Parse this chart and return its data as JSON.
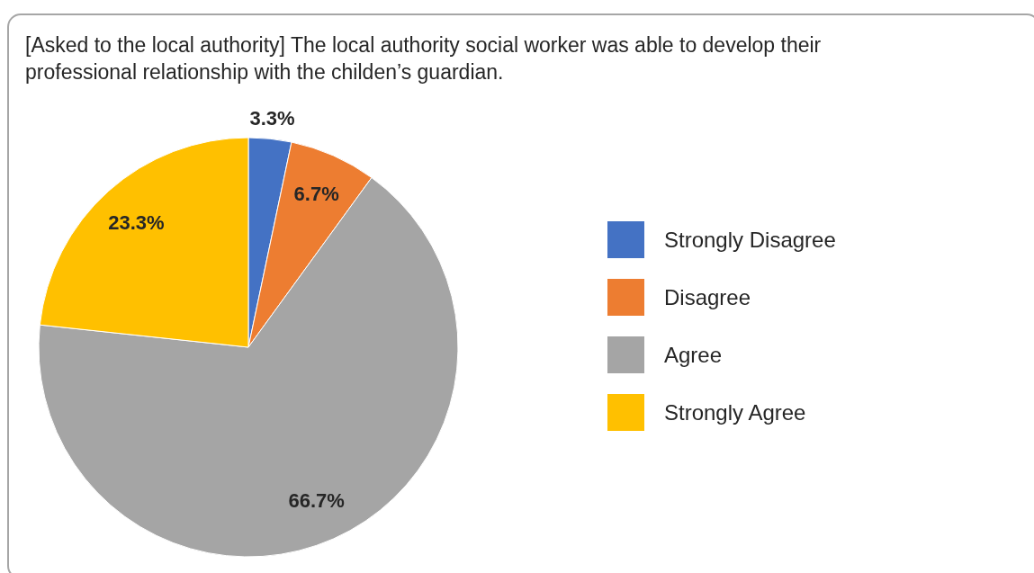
{
  "chart_data": {
    "type": "pie",
    "title": "[Asked to the local authority] The local authority social worker was able to develop their professional relationship with the childen’s guardian.",
    "categories": [
      "Strongly Disagree",
      "Disagree",
      "Agree",
      "Strongly Agree"
    ],
    "values": [
      3.3,
      6.7,
      66.7,
      23.3
    ],
    "colors": [
      "#4472c4",
      "#ed7d31",
      "#a5a5a5",
      "#ffc000"
    ],
    "value_labels": [
      "3.3%",
      "6.7%",
      "66.7%",
      "23.3%"
    ],
    "legend": "right"
  }
}
